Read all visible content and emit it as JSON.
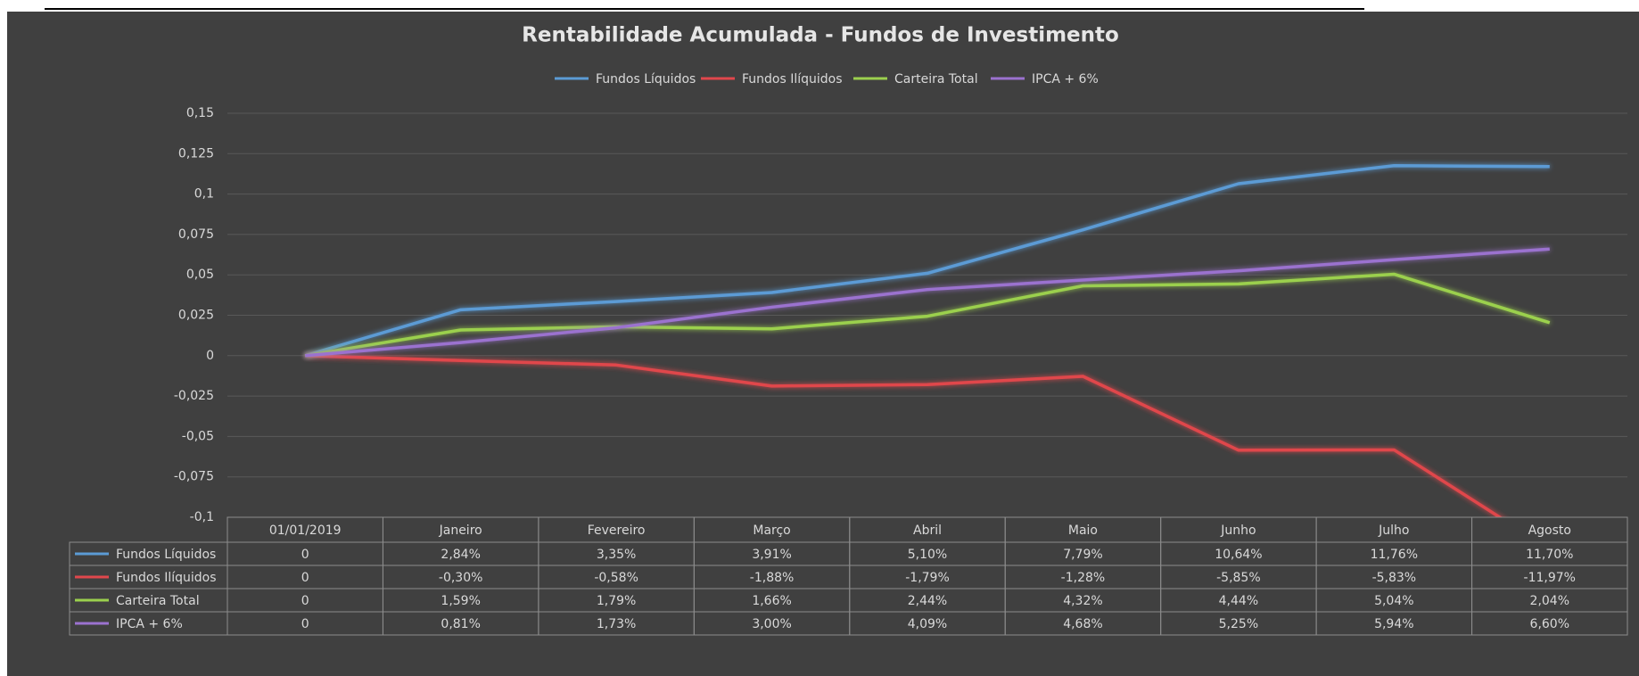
{
  "chart_data": {
    "type": "line",
    "title": "Rentabilidade Acumulada - Fundos de Investimento",
    "categories": [
      "01/01/2019",
      "Janeiro",
      "Fevereiro",
      "Março",
      "Abril",
      "Maio",
      "Junho",
      "Julho",
      "Agosto"
    ],
    "series": [
      {
        "name": "Fundos Líquidos",
        "color": "#5b9bd5",
        "values": [
          0,
          0.0284,
          0.0335,
          0.0391,
          0.051,
          0.0779,
          0.1064,
          0.1176,
          0.117
        ],
        "value_labels": [
          "0",
          "2,84%",
          "3,35%",
          "3,91%",
          "5,10%",
          "7,79%",
          "10,64%",
          "11,76%",
          "11,70%"
        ]
      },
      {
        "name": "Fundos Ilíquidos",
        "color": "#e0474c",
        "values": [
          0,
          -0.003,
          -0.0058,
          -0.0188,
          -0.0179,
          -0.0128,
          -0.0585,
          -0.0583,
          -0.1197
        ],
        "value_labels": [
          "0",
          "-0,30%",
          "-0,58%",
          "-1,88%",
          "-1,79%",
          "-1,28%",
          "-5,85%",
          "-5,83%",
          "-11,97%"
        ]
      },
      {
        "name": "Carteira Total",
        "color": "#9bd04e",
        "values": [
          0,
          0.0159,
          0.0179,
          0.0166,
          0.0244,
          0.0432,
          0.0444,
          0.0504,
          0.0204
        ],
        "value_labels": [
          "0",
          "1,59%",
          "1,79%",
          "1,66%",
          "2,44%",
          "4,32%",
          "4,44%",
          "5,04%",
          "2,04%"
        ]
      },
      {
        "name": "IPCA + 6%",
        "color": "#9b72cf",
        "values": [
          0,
          0.0081,
          0.0173,
          0.03,
          0.0409,
          0.0468,
          0.0525,
          0.0594,
          0.066
        ],
        "value_labels": [
          "0",
          "0,81%",
          "1,73%",
          "3,00%",
          "4,09%",
          "4,68%",
          "5,25%",
          "5,94%",
          "6,60%"
        ]
      }
    ],
    "ylim": [
      -0.1,
      0.15
    ],
    "yticks": [
      {
        "value": -0.1,
        "label": "-0,1"
      },
      {
        "value": -0.075,
        "label": "-0,075"
      },
      {
        "value": -0.05,
        "label": "-0,05"
      },
      {
        "value": -0.025,
        "label": "-0,025"
      },
      0,
      {
        "value": 0.025,
        "label": "0,025"
      },
      {
        "value": 0.05,
        "label": "0,05"
      },
      {
        "value": 0.075,
        "label": "0,075"
      },
      {
        "value": 0.1,
        "label": "0,1"
      },
      {
        "value": 0.125,
        "label": "0,125"
      },
      {
        "value": 0.15,
        "label": "0,15"
      }
    ],
    "grid": true,
    "legend": "top"
  }
}
